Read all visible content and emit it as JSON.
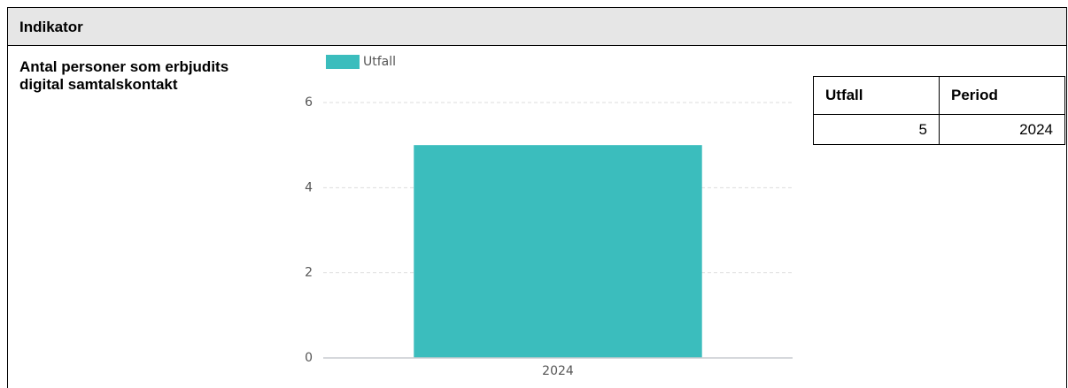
{
  "header": {
    "title": "Indikator"
  },
  "indicator": {
    "label": "Antal personer som erbjudits digital samtalskontakt"
  },
  "chart_data": {
    "type": "bar",
    "categories": [
      "2024"
    ],
    "series": [
      {
        "name": "Utfall",
        "color": "#3bbdbd",
        "values": [
          5
        ]
      }
    ],
    "ylim": [
      0,
      6
    ],
    "yticks": [
      0,
      2,
      4,
      6
    ],
    "grid": true,
    "legend": "top-left"
  },
  "table": {
    "headers": [
      "Utfall",
      "Period"
    ],
    "rows": [
      [
        5,
        2024
      ]
    ]
  }
}
